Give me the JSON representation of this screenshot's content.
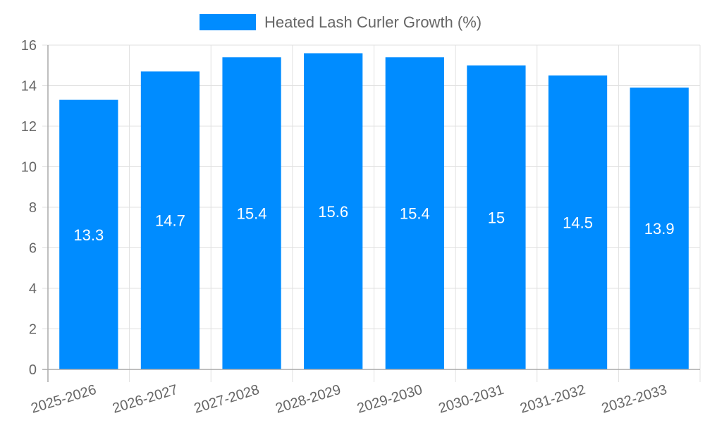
{
  "chart_data": {
    "type": "bar",
    "title": "",
    "xlabel": "",
    "ylabel": "",
    "ylim": [
      0,
      16
    ],
    "yticks": [
      0,
      2,
      4,
      6,
      8,
      10,
      12,
      14,
      16
    ],
    "grid": true,
    "legend_position": "top",
    "categories": [
      "2025-2026",
      "2026-2027",
      "2027-2028",
      "2028-2029",
      "2029-2030",
      "2030-2031",
      "2031-2032",
      "2032-2033"
    ],
    "series": [
      {
        "name": "Heated Lash Curler Growth (%)",
        "color": "#008cff",
        "values": [
          13.3,
          14.7,
          15.4,
          15.6,
          15.4,
          15,
          14.5,
          13.9
        ]
      }
    ]
  }
}
